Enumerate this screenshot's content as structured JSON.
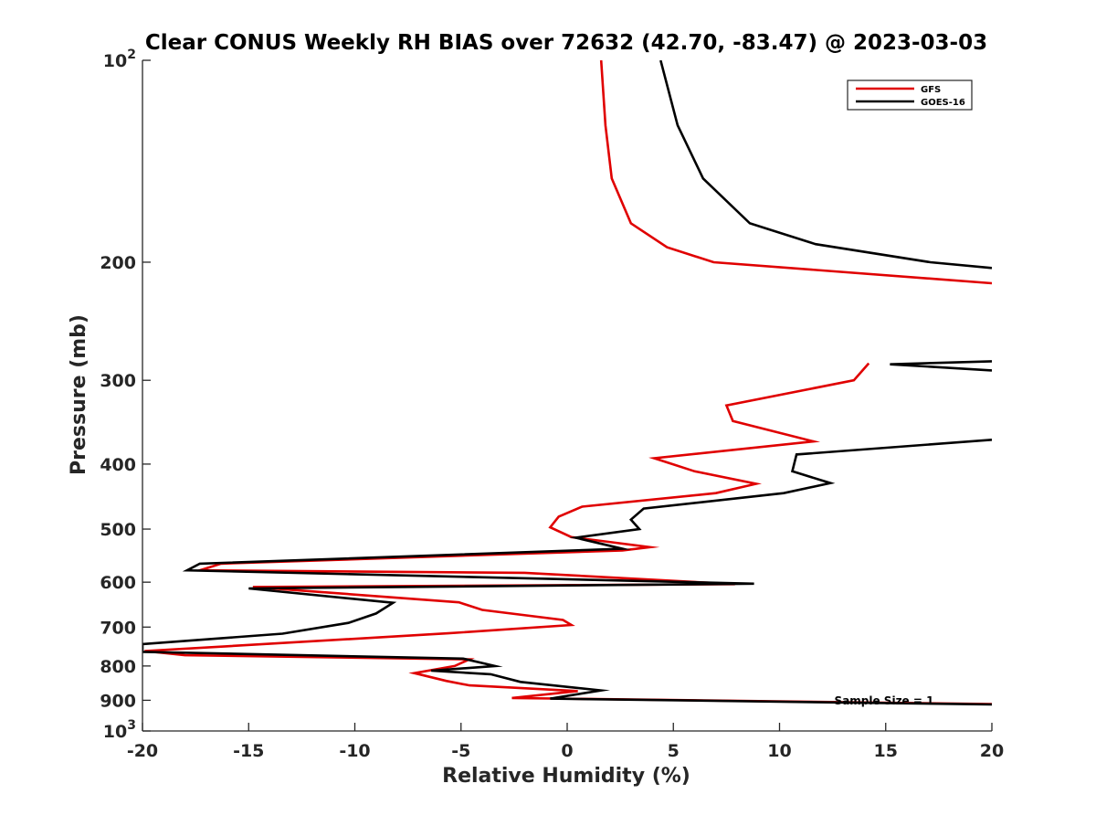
{
  "chart_data": {
    "type": "line",
    "title": "Clear CONUS Weekly RH BIAS over 72632 (42.70, -83.47) @ 2023-03-03",
    "xlabel": "Relative Humidity (%)",
    "ylabel": "Pressure (mb)",
    "xlim": [
      -20,
      20
    ],
    "ylim": [
      100,
      1000
    ],
    "y_scale": "log",
    "y_reversed": true,
    "grid": false,
    "legend_position": "top-right",
    "x_ticks": [
      -20,
      -15,
      -10,
      -5,
      0,
      5,
      10,
      15,
      20
    ],
    "x_tick_labels": [
      "-20",
      "-15",
      "-10",
      "-5",
      "0",
      "5",
      "10",
      "15",
      "20"
    ],
    "y_ticks": [
      100,
      200,
      300,
      400,
      500,
      600,
      700,
      800,
      900,
      1000
    ],
    "y_tick_labels": [
      {
        "base": "10",
        "exp": "2"
      },
      {
        "base": "200"
      },
      {
        "base": "300"
      },
      {
        "base": "400"
      },
      {
        "base": "500"
      },
      {
        "base": "600"
      },
      {
        "base": "700"
      },
      {
        "base": "800"
      },
      {
        "base": "900"
      },
      {
        "base": "10",
        "exp": "3"
      }
    ],
    "annotation": "Sample Size = 1",
    "series": [
      {
        "name": "GFS",
        "color": "#e00000",
        "segments": [
          [
            [
              1.6,
              100
            ],
            [
              1.8,
              125
            ],
            [
              2.1,
              150
            ],
            [
              3.0,
              175
            ],
            [
              4.7,
              190
            ],
            [
              6.9,
              200
            ],
            [
              20.0,
              215
            ]
          ],
          [
            [
              14.2,
              283
            ],
            [
              13.5,
              300
            ],
            [
              7.5,
              327
            ],
            [
              7.8,
              345
            ],
            [
              11.6,
              370
            ],
            [
              4.1,
              392
            ],
            [
              6.0,
              410
            ],
            [
              8.9,
              428
            ],
            [
              7.0,
              442
            ],
            [
              0.7,
              463
            ],
            [
              -0.4,
              479
            ],
            [
              -0.8,
              497
            ],
            [
              0.2,
              514
            ],
            [
              3.9,
              532
            ],
            [
              2.6,
              538
            ],
            [
              -16.3,
              563
            ],
            [
              -17.3,
              576
            ],
            [
              -2.0,
              581
            ],
            [
              7.9,
              604
            ],
            [
              -14.8,
              610
            ],
            [
              -5.1,
              643
            ],
            [
              -4.0,
              660
            ],
            [
              -0.2,
              683
            ],
            [
              0.2,
              695
            ],
            [
              -5.6,
              715
            ],
            [
              -16.1,
              748
            ],
            [
              -19.9,
              760
            ],
            [
              -18.0,
              771
            ],
            [
              -4.6,
              782
            ],
            [
              -5.3,
              800
            ],
            [
              -7.2,
              820
            ],
            [
              -5.7,
              842
            ],
            [
              -4.6,
              855
            ],
            [
              0.5,
              872
            ],
            [
              -2.6,
              893
            ],
            [
              20.0,
              912
            ]
          ]
        ]
      },
      {
        "name": "GOES-16",
        "color": "#000000",
        "segments": [
          [
            [
              4.4,
              100
            ],
            [
              5.2,
              125
            ],
            [
              6.4,
              150
            ],
            [
              8.6,
              175
            ],
            [
              11.7,
              188
            ],
            [
              17.1,
              200
            ],
            [
              20.0,
              204
            ]
          ],
          [
            [
              20.0,
              281
            ],
            [
              15.2,
              284
            ],
            [
              20.0,
              290
            ]
          ],
          [
            [
              20.0,
              368
            ],
            [
              10.8,
              387
            ],
            [
              10.6,
              410
            ],
            [
              12.4,
              427
            ],
            [
              10.2,
              442
            ],
            [
              3.6,
              466
            ],
            [
              3.0,
              484
            ],
            [
              3.4,
              500
            ],
            [
              0.4,
              515
            ],
            [
              2.6,
              535
            ],
            [
              -17.3,
              563
            ],
            [
              -17.9,
              576
            ],
            [
              8.8,
              603
            ],
            [
              -15.0,
              613
            ],
            [
              -8.2,
              644
            ],
            [
              -9.0,
              668
            ],
            [
              -10.3,
              690
            ],
            [
              -13.4,
              716
            ],
            [
              -20.0,
              742
            ],
            [
              -20.0,
              762
            ],
            [
              -4.9,
              780
            ],
            [
              -3.4,
              800
            ],
            [
              -6.4,
              813
            ],
            [
              -3.6,
              823
            ],
            [
              -2.2,
              845
            ],
            [
              1.6,
              870
            ],
            [
              -0.8,
              895
            ],
            [
              20.0,
              913
            ]
          ]
        ]
      }
    ]
  }
}
